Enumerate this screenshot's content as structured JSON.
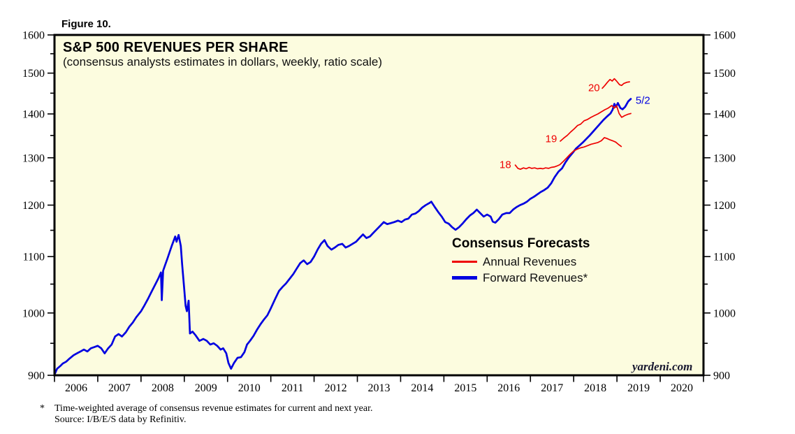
{
  "figure_label": "Figure 10.",
  "chart": {
    "title": "S&P 500 REVENUES PER SHARE",
    "subtitle": "(consensus analysts estimates in dollars, weekly, ratio scale)",
    "watermark": "yardeni.com",
    "plot_background": "#fcfcdf",
    "border_color": "#000000"
  },
  "legend": {
    "title": "Consensus Forecasts",
    "items": [
      {
        "label": "Annual Revenues",
        "color": "#ee0000",
        "thickness": 3
      },
      {
        "label": "Forward Revenues*",
        "color": "#0000e0",
        "thickness": 5
      }
    ]
  },
  "annotations": [
    {
      "label": "18",
      "color": "#ee0000",
      "year": 2016.42,
      "value": 1285
    },
    {
      "label": "19",
      "color": "#ee0000",
      "year": 2017.48,
      "value": 1341
    },
    {
      "label": "20",
      "color": "#ee0000",
      "year": 2018.47,
      "value": 1462
    },
    {
      "label": "5/2",
      "color": "#0000e0",
      "year": 2019.6,
      "value": 1431
    }
  ],
  "footnotes": {
    "marker": "*",
    "line1": "Time-weighted average of consensus revenue estimates for current and next year.",
    "line2": "Source: I/B/E/S data by Refinitiv."
  },
  "chart_data": {
    "type": "line",
    "title": "S&P 500 REVENUES PER SHARE",
    "subtitle": "(consensus analysts estimates in dollars, weekly, ratio scale)",
    "y_scale": "log (ratio scale)",
    "xlim": [
      2006,
      2021
    ],
    "ylim": [
      900,
      1600
    ],
    "x_tick_years": [
      2006,
      2007,
      2008,
      2009,
      2010,
      2011,
      2012,
      2013,
      2014,
      2015,
      2016,
      2017,
      2018,
      2019,
      2020
    ],
    "y_ticks": [
      900,
      1000,
      1100,
      1200,
      1300,
      1400,
      1500,
      1600
    ],
    "y_minor_ticks": [
      950,
      1050,
      1150,
      1250,
      1350,
      1450,
      1550
    ],
    "grid": false,
    "legend_position": "center-right",
    "series": [
      {
        "name": "Forward Revenues",
        "color": "#0000e0",
        "width": 2.7,
        "points": [
          [
            2006.0,
            901
          ],
          [
            2006.06,
            910
          ],
          [
            2006.13,
            914
          ],
          [
            2006.19,
            918
          ],
          [
            2006.27,
            921
          ],
          [
            2006.35,
            926
          ],
          [
            2006.44,
            931
          ],
          [
            2006.52,
            934
          ],
          [
            2006.6,
            937
          ],
          [
            2006.68,
            940
          ],
          [
            2006.76,
            937
          ],
          [
            2006.84,
            942
          ],
          [
            2006.92,
            944
          ],
          [
            2007.0,
            946
          ],
          [
            2007.08,
            942
          ],
          [
            2007.16,
            934
          ],
          [
            2007.24,
            942
          ],
          [
            2007.32,
            948
          ],
          [
            2007.4,
            961
          ],
          [
            2007.48,
            965
          ],
          [
            2007.56,
            961
          ],
          [
            2007.65,
            968
          ],
          [
            2007.73,
            977
          ],
          [
            2007.81,
            984
          ],
          [
            2007.89,
            993
          ],
          [
            2008.0,
            1003
          ],
          [
            2008.08,
            1013
          ],
          [
            2008.16,
            1024
          ],
          [
            2008.24,
            1036
          ],
          [
            2008.32,
            1048
          ],
          [
            2008.4,
            1060
          ],
          [
            2008.46,
            1071
          ],
          [
            2008.48,
            1022
          ],
          [
            2008.51,
            1074
          ],
          [
            2008.56,
            1085
          ],
          [
            2008.61,
            1096
          ],
          [
            2008.66,
            1108
          ],
          [
            2008.71,
            1120
          ],
          [
            2008.76,
            1131
          ],
          [
            2008.79,
            1138
          ],
          [
            2008.82,
            1128
          ],
          [
            2008.87,
            1141
          ],
          [
            2008.92,
            1120
          ],
          [
            2008.95,
            1086
          ],
          [
            2009.0,
            1040
          ],
          [
            2009.03,
            1012
          ],
          [
            2009.06,
            1003
          ],
          [
            2009.1,
            1021
          ],
          [
            2009.13,
            966
          ],
          [
            2009.19,
            969
          ],
          [
            2009.26,
            963
          ],
          [
            2009.35,
            954
          ],
          [
            2009.44,
            957
          ],
          [
            2009.52,
            954
          ],
          [
            2009.6,
            948
          ],
          [
            2009.68,
            950
          ],
          [
            2009.76,
            946
          ],
          [
            2009.84,
            940
          ],
          [
            2009.9,
            942
          ],
          [
            2009.97,
            934
          ],
          [
            2010.02,
            919
          ],
          [
            2010.08,
            910
          ],
          [
            2010.15,
            919
          ],
          [
            2010.23,
            927
          ],
          [
            2010.31,
            928
          ],
          [
            2010.39,
            936
          ],
          [
            2010.45,
            948
          ],
          [
            2010.52,
            954
          ],
          [
            2010.6,
            962
          ],
          [
            2010.68,
            972
          ],
          [
            2010.76,
            981
          ],
          [
            2010.84,
            989
          ],
          [
            2010.92,
            996
          ],
          [
            2011.0,
            1008
          ],
          [
            2011.1,
            1024
          ],
          [
            2011.19,
            1038
          ],
          [
            2011.27,
            1045
          ],
          [
            2011.35,
            1051
          ],
          [
            2011.44,
            1060
          ],
          [
            2011.52,
            1068
          ],
          [
            2011.6,
            1078
          ],
          [
            2011.68,
            1088
          ],
          [
            2011.76,
            1093
          ],
          [
            2011.84,
            1086
          ],
          [
            2011.92,
            1090
          ],
          [
            2012.0,
            1100
          ],
          [
            2012.08,
            1113
          ],
          [
            2012.16,
            1124
          ],
          [
            2012.24,
            1131
          ],
          [
            2012.31,
            1120
          ],
          [
            2012.4,
            1113
          ],
          [
            2012.48,
            1117
          ],
          [
            2012.56,
            1122
          ],
          [
            2012.65,
            1124
          ],
          [
            2012.73,
            1117
          ],
          [
            2012.81,
            1120
          ],
          [
            2012.89,
            1124
          ],
          [
            2012.97,
            1128
          ],
          [
            2013.05,
            1135
          ],
          [
            2013.13,
            1142
          ],
          [
            2013.21,
            1135
          ],
          [
            2013.29,
            1138
          ],
          [
            2013.37,
            1145
          ],
          [
            2013.45,
            1152
          ],
          [
            2013.53,
            1159
          ],
          [
            2013.61,
            1166
          ],
          [
            2013.69,
            1162
          ],
          [
            2013.77,
            1164
          ],
          [
            2013.85,
            1166
          ],
          [
            2013.94,
            1169
          ],
          [
            2014.02,
            1166
          ],
          [
            2014.1,
            1171
          ],
          [
            2014.18,
            1173
          ],
          [
            2014.26,
            1181
          ],
          [
            2014.34,
            1183
          ],
          [
            2014.42,
            1188
          ],
          [
            2014.5,
            1195
          ],
          [
            2014.58,
            1200
          ],
          [
            2014.66,
            1204
          ],
          [
            2014.71,
            1207
          ],
          [
            2014.79,
            1196
          ],
          [
            2014.87,
            1186
          ],
          [
            2014.95,
            1177
          ],
          [
            2015.03,
            1166
          ],
          [
            2015.11,
            1163
          ],
          [
            2015.19,
            1156
          ],
          [
            2015.27,
            1151
          ],
          [
            2015.35,
            1156
          ],
          [
            2015.44,
            1164
          ],
          [
            2015.52,
            1172
          ],
          [
            2015.6,
            1179
          ],
          [
            2015.68,
            1184
          ],
          [
            2015.76,
            1191
          ],
          [
            2015.84,
            1184
          ],
          [
            2015.92,
            1177
          ],
          [
            2016.0,
            1181
          ],
          [
            2016.08,
            1177
          ],
          [
            2016.13,
            1167
          ],
          [
            2016.19,
            1165
          ],
          [
            2016.27,
            1172
          ],
          [
            2016.35,
            1181
          ],
          [
            2016.44,
            1184
          ],
          [
            2016.52,
            1184
          ],
          [
            2016.6,
            1191
          ],
          [
            2016.68,
            1196
          ],
          [
            2016.76,
            1200
          ],
          [
            2016.84,
            1203
          ],
          [
            2016.92,
            1207
          ],
          [
            2017.0,
            1213
          ],
          [
            2017.08,
            1217
          ],
          [
            2017.16,
            1222
          ],
          [
            2017.24,
            1227
          ],
          [
            2017.32,
            1231
          ],
          [
            2017.4,
            1236
          ],
          [
            2017.48,
            1245
          ],
          [
            2017.56,
            1258
          ],
          [
            2017.65,
            1270
          ],
          [
            2017.73,
            1277
          ],
          [
            2017.81,
            1290
          ],
          [
            2017.89,
            1301
          ],
          [
            2017.97,
            1310
          ],
          [
            2018.05,
            1320
          ],
          [
            2018.13,
            1327
          ],
          [
            2018.21,
            1334
          ],
          [
            2018.29,
            1342
          ],
          [
            2018.37,
            1350
          ],
          [
            2018.45,
            1359
          ],
          [
            2018.53,
            1368
          ],
          [
            2018.61,
            1377
          ],
          [
            2018.69,
            1386
          ],
          [
            2018.77,
            1394
          ],
          [
            2018.85,
            1401
          ],
          [
            2018.9,
            1410
          ],
          [
            2018.94,
            1424
          ],
          [
            2018.98,
            1417
          ],
          [
            2019.02,
            1426
          ],
          [
            2019.08,
            1414
          ],
          [
            2019.13,
            1411
          ],
          [
            2019.19,
            1417
          ],
          [
            2019.26,
            1430
          ],
          [
            2019.32,
            1436
          ]
        ]
      },
      {
        "name": "Annual Revenues 2018",
        "color": "#ee0000",
        "width": 1.7,
        "points": [
          [
            2016.65,
            1284
          ],
          [
            2016.71,
            1277
          ],
          [
            2016.77,
            1275
          ],
          [
            2016.84,
            1278
          ],
          [
            2016.9,
            1276
          ],
          [
            2016.97,
            1279
          ],
          [
            2017.03,
            1277
          ],
          [
            2017.1,
            1278
          ],
          [
            2017.16,
            1276
          ],
          [
            2017.23,
            1277
          ],
          [
            2017.29,
            1276
          ],
          [
            2017.35,
            1278
          ],
          [
            2017.42,
            1277
          ],
          [
            2017.48,
            1279
          ],
          [
            2017.55,
            1280
          ],
          [
            2017.61,
            1282
          ],
          [
            2017.68,
            1285
          ],
          [
            2017.76,
            1292
          ],
          [
            2017.84,
            1300
          ],
          [
            2017.92,
            1308
          ],
          [
            2018.0,
            1315
          ],
          [
            2018.08,
            1319
          ],
          [
            2018.16,
            1322
          ],
          [
            2018.24,
            1324
          ],
          [
            2018.32,
            1327
          ],
          [
            2018.4,
            1330
          ],
          [
            2018.48,
            1332
          ],
          [
            2018.56,
            1334
          ],
          [
            2018.64,
            1338
          ],
          [
            2018.71,
            1345
          ],
          [
            2018.77,
            1343
          ],
          [
            2018.84,
            1340
          ],
          [
            2018.9,
            1338
          ],
          [
            2018.97,
            1335
          ],
          [
            2019.03,
            1330
          ],
          [
            2019.1,
            1325
          ]
        ]
      },
      {
        "name": "Annual Revenues 2019",
        "color": "#ee0000",
        "width": 1.7,
        "points": [
          [
            2017.69,
            1337
          ],
          [
            2017.77,
            1344
          ],
          [
            2017.85,
            1350
          ],
          [
            2017.93,
            1358
          ],
          [
            2018.01,
            1365
          ],
          [
            2018.09,
            1373
          ],
          [
            2018.16,
            1376
          ],
          [
            2018.24,
            1384
          ],
          [
            2018.32,
            1387
          ],
          [
            2018.4,
            1392
          ],
          [
            2018.48,
            1396
          ],
          [
            2018.56,
            1400
          ],
          [
            2018.64,
            1405
          ],
          [
            2018.72,
            1410
          ],
          [
            2018.8,
            1414
          ],
          [
            2018.88,
            1420
          ],
          [
            2018.94,
            1414
          ],
          [
            2018.99,
            1420
          ],
          [
            2019.05,
            1401
          ],
          [
            2019.11,
            1392
          ],
          [
            2019.18,
            1396
          ],
          [
            2019.25,
            1399
          ],
          [
            2019.32,
            1401
          ]
        ]
      },
      {
        "name": "Annual Revenues 2020",
        "color": "#ee0000",
        "width": 1.7,
        "points": [
          [
            2018.66,
            1462
          ],
          [
            2018.72,
            1469
          ],
          [
            2018.78,
            1477
          ],
          [
            2018.84,
            1484
          ],
          [
            2018.89,
            1480
          ],
          [
            2018.94,
            1486
          ],
          [
            2019.0,
            1479
          ],
          [
            2019.06,
            1471
          ],
          [
            2019.11,
            1469
          ],
          [
            2019.16,
            1474
          ],
          [
            2019.23,
            1477
          ],
          [
            2019.29,
            1478
          ]
        ]
      }
    ]
  }
}
